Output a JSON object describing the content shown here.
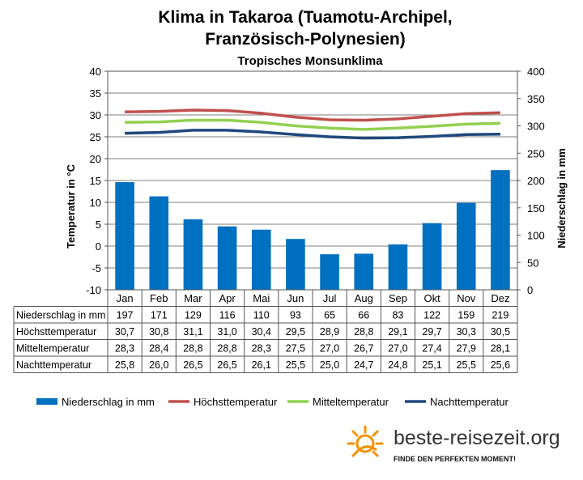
{
  "chart_data": {
    "type": "bar+line",
    "title_line1": "Klima in Takaroa (Tuamotu-Archipel,",
    "title_line2": "Französisch-Polynesien)",
    "subtitle": "Tropisches Monsunklima",
    "y_left_label": "Temperatur in °C",
    "y_right_label": "Niederschlag in mm",
    "y_left_range": [
      -10,
      40
    ],
    "y_left_ticks": [
      "40",
      "35",
      "30",
      "25",
      "20",
      "15",
      "10",
      "5",
      "0",
      "-5",
      "-10"
    ],
    "y_right_range": [
      0,
      400
    ],
    "y_right_ticks": [
      "400",
      "350",
      "300",
      "250",
      "200",
      "150",
      "100",
      "50",
      "0"
    ],
    "categories": [
      "Jan",
      "Feb",
      "Mar",
      "Apr",
      "Mai",
      "Jun",
      "Jul",
      "Aug",
      "Sep",
      "Okt",
      "Nov",
      "Dez"
    ],
    "grid": "horizontal",
    "legend_position": "bottom",
    "series": [
      {
        "name": "Niederschlag in mm",
        "kind": "bar",
        "axis": "right",
        "color": "#0070C0",
        "values": [
          197,
          171,
          129,
          116,
          110,
          93,
          65,
          66,
          83,
          122,
          159,
          219
        ],
        "labels": [
          "197",
          "171",
          "129",
          "116",
          "110",
          "93",
          "65",
          "66",
          "83",
          "122",
          "159",
          "219"
        ]
      },
      {
        "name": "Höchsttemperatur",
        "kind": "line",
        "axis": "left",
        "color": "#C0504D",
        "values": [
          30.7,
          30.8,
          31.1,
          31.0,
          30.4,
          29.5,
          28.9,
          28.8,
          29.1,
          29.7,
          30.3,
          30.5
        ],
        "labels": [
          "30,7",
          "30,8",
          "31,1",
          "31,0",
          "30,4",
          "29,5",
          "28,9",
          "28,8",
          "29,1",
          "29,7",
          "30,3",
          "30,5"
        ]
      },
      {
        "name": "Mitteltemperatur",
        "kind": "line",
        "axis": "left",
        "color": "#92D050",
        "values": [
          28.3,
          28.4,
          28.8,
          28.8,
          28.3,
          27.5,
          27.0,
          26.7,
          27.0,
          27.4,
          27.9,
          28.1
        ],
        "labels": [
          "28,3",
          "28,4",
          "28,8",
          "28,8",
          "28,3",
          "27,5",
          "27,0",
          "26,7",
          "27,0",
          "27,4",
          "27,9",
          "28,1"
        ]
      },
      {
        "name": "Nachttemperatur",
        "kind": "line",
        "axis": "left",
        "color": "#1F497D",
        "values": [
          25.8,
          26.0,
          26.5,
          26.5,
          26.1,
          25.5,
          25.0,
          24.7,
          24.8,
          25.1,
          25.5,
          25.6
        ],
        "labels": [
          "25,8",
          "26,0",
          "26,5",
          "26,5",
          "26,1",
          "25,5",
          "25,0",
          "24,7",
          "24,8",
          "25,1",
          "25,5",
          "25,6"
        ]
      }
    ]
  },
  "branding": {
    "site": "beste-reisezeit.org",
    "tagline": "FINDE DEN PERFEKTEN MOMENT!",
    "sun_color": "#F39200",
    "icon": "sun-icon"
  }
}
